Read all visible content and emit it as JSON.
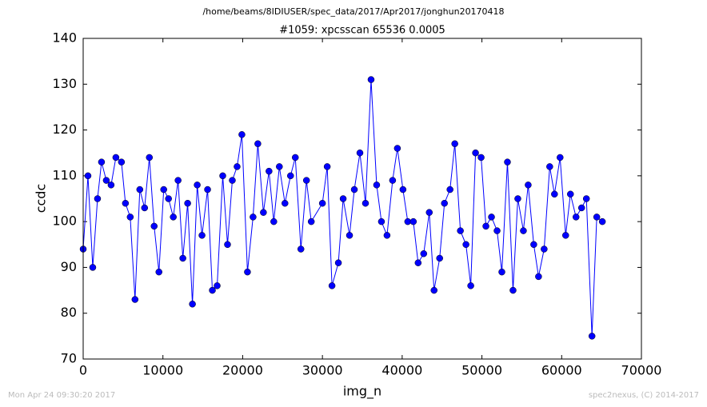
{
  "chart_data": {
    "type": "line",
    "suptitle": "/home/beams/8IDIUSER/spec_data/2017/Apr2017/jonghun20170418",
    "title": "#1059: xpcsscan 65536 0.0005",
    "x_label": "img_n",
    "y_label": "ccdc",
    "footer_left": "Mon Apr 24 09:30:20 2017",
    "footer_right": "spec2nexus, (C) 2014-2017",
    "color": "#0000ff",
    "marker": "circle",
    "x": [
      0,
      600,
      1200,
      1800,
      2300,
      2900,
      3500,
      4100,
      4800,
      5300,
      5900,
      6500,
      7100,
      7700,
      8300,
      8900,
      9500,
      10100,
      10700,
      11300,
      11900,
      12500,
      13100,
      13700,
      14300,
      14900,
      15600,
      16200,
      16800,
      17500,
      18100,
      18700,
      19300,
      19900,
      20600,
      21300,
      21900,
      22600,
      23300,
      23900,
      24600,
      25300,
      26000,
      26600,
      27300,
      28000,
      28600,
      30000,
      30600,
      31200,
      32000,
      32600,
      33400,
      34000,
      34700,
      35400,
      36100,
      36800,
      37400,
      38100,
      38800,
      39400,
      40100,
      40700,
      41400,
      42000,
      42700,
      43400,
      44000,
      44700,
      45300,
      46000,
      46600,
      47300,
      48000,
      48600,
      49200,
      49900,
      50500,
      51200,
      51900,
      52500,
      53200,
      53900,
      54500,
      55200,
      55800,
      56500,
      57100,
      57800,
      58500,
      59100,
      59800,
      60500,
      61100,
      61800,
      62500,
      63100,
      63800,
      64400,
      65100
    ],
    "values": [
      94,
      110,
      90,
      105,
      113,
      109,
      108,
      114,
      113,
      104,
      101,
      83,
      107,
      103,
      114,
      99,
      89,
      107,
      105,
      101,
      109,
      92,
      104,
      82,
      108,
      97,
      107,
      85,
      86,
      110,
      95,
      109,
      112,
      119,
      89,
      101,
      117,
      102,
      111,
      100,
      112,
      104,
      110,
      114,
      94,
      109,
      100,
      104,
      112,
      86,
      91,
      105,
      97,
      107,
      115,
      104,
      131,
      108,
      100,
      97,
      109,
      116,
      107,
      100,
      100,
      91,
      93,
      102,
      85,
      92,
      104,
      107,
      117,
      98,
      95,
      86,
      115,
      114,
      99,
      101,
      98,
      89,
      113,
      85,
      105,
      98,
      108,
      95,
      88,
      94,
      112,
      106,
      114,
      97,
      106,
      101,
      103,
      105,
      75,
      101,
      100
    ],
    "xlim": [
      0,
      70000
    ],
    "xticks": [
      0,
      10000,
      20000,
      30000,
      40000,
      50000,
      60000,
      70000
    ],
    "ylim": [
      70,
      140
    ],
    "yticks": [
      70,
      80,
      90,
      100,
      110,
      120,
      130,
      140
    ],
    "grid": false
  }
}
